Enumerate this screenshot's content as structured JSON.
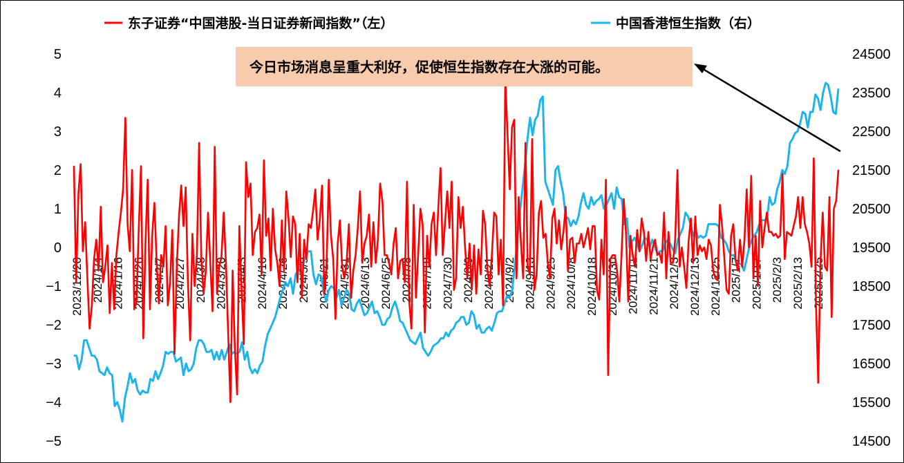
{
  "chart_data": {
    "type": "line",
    "title": "",
    "legend": {
      "placement": "top",
      "entries": [
        {
          "label": "东子证券“中国港股-当日证券新闻指数”（左）",
          "color": "#ff0000"
        },
        {
          "label": "中国香港恒生指数（右）",
          "color": "#1eb4ea"
        }
      ]
    },
    "annotation": {
      "text": "今日市场消息呈重大利好，促使恒生指数存在大涨的可能。",
      "background": "#f8cbad"
    },
    "y_left": {
      "range": [
        -5,
        5
      ],
      "ticks": [
        "5",
        "4",
        "3",
        "2",
        "1",
        "0",
        "−1",
        "−2",
        "−3",
        "−4",
        "−5"
      ]
    },
    "y_right": {
      "range": [
        14500,
        24500
      ],
      "ticks": [
        "24500",
        "23500",
        "22500",
        "21500",
        "20500",
        "19500",
        "18500",
        "17500",
        "16500",
        "15500",
        "14500"
      ]
    },
    "x_ticks": [
      "2023/12/20",
      "2024/1/4",
      "2024/1/16",
      "2024/1/26",
      "2024/2/7",
      "2024/2/27",
      "2024/3/8",
      "2024/3/20",
      "2024/4/3",
      "2024/4/16",
      "2024/4/26",
      "2024/5/9",
      "2024/5/21",
      "2024/5/31",
      "2024/6/13",
      "2024/6/25",
      "2024/7/8",
      "2024/7/18",
      "2024/7/30",
      "2024/8/9",
      "2024/8/21",
      "2024/9/2",
      "2024/9/13",
      "2024/9/25",
      "2024/10/8",
      "2024/10/18",
      "2024/10/30",
      "2024/11/11",
      "2024/11/21",
      "2024/12/3",
      "2024/12/13",
      "2024/12/25",
      "2025/1/7",
      "2025/1/17",
      "2025/2/3",
      "2025/2/13",
      "2025/2/25"
    ],
    "series": [
      {
        "name": "东子证券“中国港股-当日证券新闻指数”（左）",
        "axis": "left",
        "color": "#ff0000",
        "values": [
          2.1,
          -0.9,
          1.4,
          2.15,
          -0.1,
          0.65,
          -0.8,
          -2.1,
          -1.5,
          -0.3,
          0.2,
          -0.6,
          1.05,
          -0.9,
          -0.5,
          0.05,
          -1.7,
          -0.4,
          -1.6,
          -0.2,
          0.4,
          0.9,
          1.5,
          3.35,
          0.6,
          -0.1,
          2.0,
          -1.6,
          -1.4,
          0.5,
          2.1,
          -2.35,
          0.1,
          1.75,
          -1.6,
          0.3,
          1.15,
          -0.4,
          -1.45,
          -0.2,
          -0.5,
          0.55,
          -1.5,
          -0.9,
          0.45,
          -2.75,
          -0.5,
          0.8,
          1.6,
          0.55,
          1.55,
          -0.9,
          -2.4,
          0.35,
          -1.0,
          -0.2,
          2.7,
          -0.3,
          -1.2,
          -0.6,
          0.9,
          -0.4,
          -1.65,
          2.6,
          -1.2,
          -0.5,
          -0.25,
          0.9,
          -0.4,
          -2.2,
          -4.0,
          -0.6,
          -2.6,
          -3.8,
          0.55,
          -1.1,
          -2.5,
          2.2,
          1.3,
          1.65,
          -0.2,
          0.4,
          0.5,
          0.85,
          -0.7,
          2.25,
          0.3,
          0.75,
          -0.6,
          1.0,
          -0.05,
          -0.4,
          -1.0,
          0.7,
          -0.6,
          1.45,
          0.75,
          -0.25,
          0.8,
          0.6,
          -0.9,
          0.35,
          -1.3,
          0.2,
          -0.3,
          0.6,
          0.5,
          0.95,
          1.5,
          0.2,
          0.7,
          1.6,
          -1.2,
          -0.5,
          1.75,
          0.3,
          -0.3,
          -1.85,
          0.1,
          0.7,
          -0.5,
          -0.8,
          -0.4,
          0.6,
          -1.3,
          -0.6,
          -0.2,
          0.5,
          1.45,
          -0.4,
          0.1,
          0.3,
          0.85,
          -0.5,
          0.65,
          -0.4,
          0.2,
          1.65,
          1.2,
          -0.2,
          -0.2,
          -0.4,
          -0.7,
          0.1,
          0.5,
          -0.8,
          -0.35,
          -0.3,
          -0.9,
          1.7,
          -1.4,
          -2.1,
          1.1,
          -1.3,
          -0.2,
          1.0,
          0.6,
          -2.2,
          0.3,
          -0.5,
          0.6,
          0.9,
          -0.2,
          1.0,
          2.05,
          -0.2,
          0.6,
          1.45,
          0.5,
          1.7,
          -1.1,
          -0.8,
          1.3,
          0.5,
          1.05,
          0.0,
          -0.8,
          0.1,
          -1.1,
          0.05,
          -1.2,
          -0.05,
          -0.7,
          0.95,
          0.6,
          -0.6,
          -1.0,
          -0.2,
          0.9,
          0.8,
          -0.7,
          0.2,
          -1.5,
          4.35,
          2.9,
          1.5,
          3.1,
          3.3,
          -0.8,
          1.3,
          0.1,
          -0.8,
          2.7,
          -0.5,
          -0.7,
          2.8,
          -1.1,
          -0.7,
          0.9,
          1.2,
          0.25,
          0.35,
          -0.4,
          -0.8,
          0.75,
          1.0,
          0.1,
          0.7,
          -0.05,
          0.4,
          1.05,
          -0.6,
          0.2,
          0.25,
          -0.4,
          0.1,
          0.1,
          0.35,
          0.0,
          0.25,
          0.5,
          -0.05,
          0.55,
          0.55,
          -1.1,
          -1.35,
          0.2,
          -0.7,
          1.75,
          -3.3,
          -0.3,
          -0.2,
          -0.2,
          -0.6,
          -1.4,
          -0.2,
          1.25,
          0.35,
          -1.4,
          0.3,
          -0.2,
          -0.5,
          0.45,
          -0.1,
          0.75,
          0.4,
          -0.35,
          0.4,
          -0.3,
          0.0,
          0.2,
          -0.2,
          -0.15,
          -0.4,
          0.9,
          -0.8,
          0.4,
          -0.4,
          -0.4,
          0.2,
          2.0,
          -0.5,
          0.0,
          -0.5,
          -1.05,
          0.15,
          0.75,
          -0.4,
          0.8,
          -0.2,
          0.05,
          -0.1,
          0.0,
          -0.3,
          0.2,
          0.05,
          -0.6,
          -0.8,
          -0.85,
          1.1,
          0.55,
          -0.3,
          -1.1,
          -1.2,
          0.3,
          0.6,
          -0.3,
          -0.6,
          0.2,
          -0.5,
          0.2,
          1.5,
          0.0,
          1.85,
          -0.8,
          0.3,
          -1.0,
          1.2,
          0.0,
          0.5,
          0.9,
          0.4,
          0.4,
          0.3,
          0.35,
          0.25,
          0.3,
          1.9,
          -0.3,
          0.4,
          0.35,
          0.3,
          0.55,
          0.8,
          1.3,
          0.5,
          1.3,
          0.6,
          0.4,
          0.1,
          -0.5,
          2.3,
          -1.5,
          -3.5,
          -0.4,
          0.9,
          -0.5,
          -0.6,
          1.3,
          -1.8,
          1.0,
          1.2,
          2.0
        ]
      },
      {
        "name": "中国香港恒生指数（右）",
        "axis": "right",
        "color": "#1eb4ea",
        "values": [
          16700,
          16700,
          16350,
          16600,
          17100,
          17100,
          16900,
          16700,
          16700,
          16600,
          16300,
          16250,
          16200,
          16400,
          16250,
          16200,
          15400,
          15500,
          15300,
          15000,
          15600,
          15900,
          16250,
          16000,
          16100,
          15800,
          15700,
          15800,
          15750,
          15750,
          16100,
          16050,
          16300,
          16100,
          16250,
          16450,
          16800,
          16750,
          16800,
          16800,
          16550,
          16600,
          16650,
          16200,
          16500,
          16300,
          16350,
          16500,
          16900,
          17100,
          17100,
          17000,
          16800,
          16800,
          16850,
          16600,
          16800,
          16600,
          16850,
          16600,
          16800,
          17000,
          16750,
          16800,
          16750,
          16800,
          17050,
          16600,
          16800,
          16400,
          16250,
          16350,
          16250,
          16450,
          16550,
          16950,
          17250,
          17400,
          17550,
          17700,
          17950,
          18200,
          18400,
          18600,
          18500,
          18700,
          18300,
          18800,
          18900,
          19050,
          19050,
          19300,
          19400,
          19400,
          18800,
          18550,
          18800,
          18750,
          18350,
          18100,
          18400,
          18500,
          18450,
          18200,
          18400,
          18000,
          18200,
          18400,
          18300,
          17900,
          17850,
          18050,
          18150,
          17950,
          17750,
          17800,
          17950,
          18100,
          17800,
          17850,
          17700,
          17500,
          17500,
          17650,
          17700,
          17950,
          18100,
          17900,
          17600,
          17550,
          17400,
          17250,
          17100,
          17050,
          17000,
          17150,
          17300,
          16900,
          16800,
          16700,
          16800,
          16950,
          17000,
          17050,
          17150,
          17150,
          17300,
          17200,
          17350,
          17400,
          17550,
          17600,
          17700,
          17700,
          17500,
          17550,
          17850,
          17750,
          17400,
          17500,
          17300,
          17300,
          17400,
          17450,
          17350,
          17550,
          17800,
          17850,
          17850,
          18050,
          18250,
          18200,
          18400,
          19000,
          19700,
          20400,
          21000,
          21600,
          22300,
          22850,
          22400,
          22800,
          22900,
          23300,
          23400,
          21200,
          21000,
          20800,
          20600,
          21500,
          21600,
          21200,
          20900,
          20300,
          20250,
          20050,
          20200,
          20100,
          20300,
          20650,
          20900,
          20600,
          20500,
          20800,
          20600,
          20700,
          20750,
          20850,
          20500,
          20600,
          20750,
          20900,
          20500,
          21050,
          20800,
          20750,
          20100,
          20250,
          19500,
          19650,
          19750,
          19600,
          19400,
          19550,
          19750,
          19700,
          19500,
          19700,
          19500,
          19350,
          19400,
          19400,
          19600,
          19700,
          19600,
          19450,
          19350,
          19700,
          19850,
          20000,
          20400,
          20300,
          20100,
          19800,
          19950,
          19750,
          19800,
          19750,
          19800,
          20100,
          20100,
          20100,
          20100,
          20050,
          19750,
          19700,
          19600,
          19400,
          19300,
          19300,
          19100,
          19100,
          19050,
          18900,
          19200,
          19500,
          19700,
          19800,
          19900,
          20100,
          20200,
          20200,
          20250,
          20800,
          20600,
          20650,
          21000,
          21200,
          21500,
          21400,
          21600,
          22200,
          22300,
          22450,
          22500,
          22700,
          23000,
          22950,
          22600,
          23000,
          23000,
          23450,
          23350,
          23050,
          23500,
          23750,
          23700,
          23400,
          23000,
          22950,
          23600
        ]
      }
    ]
  }
}
